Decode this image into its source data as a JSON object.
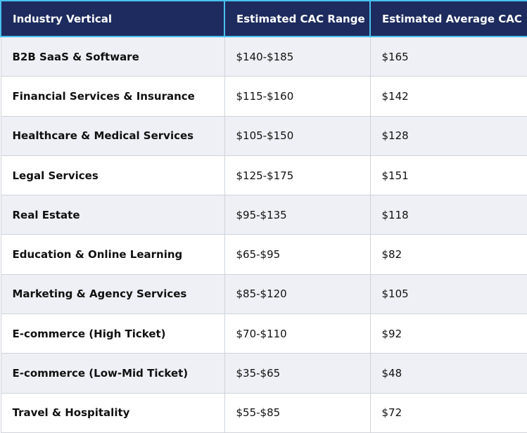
{
  "table": {
    "header": [
      "Industry Vertical",
      "Estimated CAC Range",
      "Estimated Average CAC"
    ],
    "rows": [
      [
        "B2B SaaS & Software",
        "$140-$185",
        "$165"
      ],
      [
        "Financial Services & Insurance",
        "$115-$160",
        "$142"
      ],
      [
        "Healthcare & Medical Services",
        "$105-$150",
        "$128"
      ],
      [
        "Legal Services",
        "$125-$175",
        "$151"
      ],
      [
        "Real Estate",
        "$95-$135",
        "$118"
      ],
      [
        "Education & Online Learning",
        "$65-$95",
        "$82"
      ],
      [
        "Marketing & Agency Services",
        "$85-$120",
        "$105"
      ],
      [
        "E-commerce (High Ticket)",
        "$70-$110",
        "$92"
      ],
      [
        "E-commerce (Low-Mid Ticket)",
        "$35-$65",
        "$48"
      ],
      [
        "Travel & Hospitality",
        "$55-$85",
        "$72"
      ]
    ]
  }
}
